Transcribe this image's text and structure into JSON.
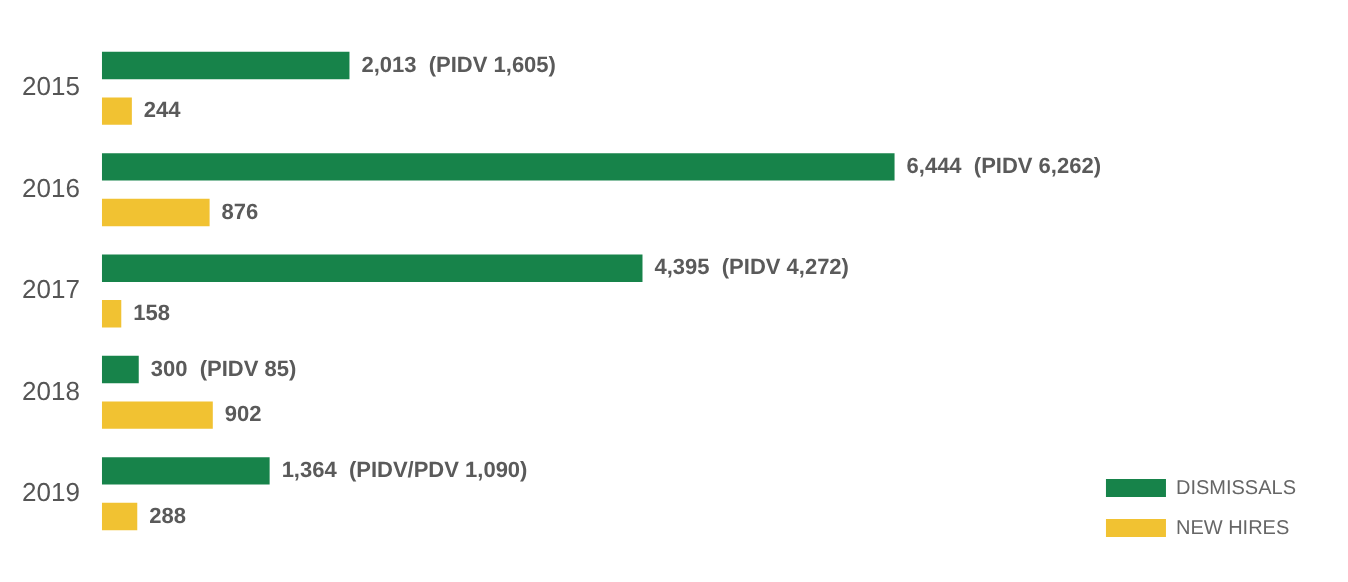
{
  "chart_data": {
    "type": "bar",
    "orientation": "horizontal",
    "categories": [
      "2015",
      "2016",
      "2017",
      "2018",
      "2019"
    ],
    "series": [
      {
        "name": "DISMISSALS",
        "color": "#17834a",
        "values": [
          2013,
          6444,
          4395,
          300,
          1364
        ],
        "value_labels": [
          "2,013  (PIDV 1,605)",
          "6,444  (PIDV 6,262)",
          "4,395  (PIDV 4,272)",
          "300  (PIDV 85)",
          "1,364  (PIDV/PDV 1,090)"
        ]
      },
      {
        "name": "NEW HIRES",
        "color": "#f1c232",
        "values": [
          244,
          876,
          158,
          902,
          288
        ],
        "value_labels": [
          "244",
          "876",
          "158",
          "902",
          "288"
        ]
      }
    ],
    "legend": "bottom right"
  }
}
